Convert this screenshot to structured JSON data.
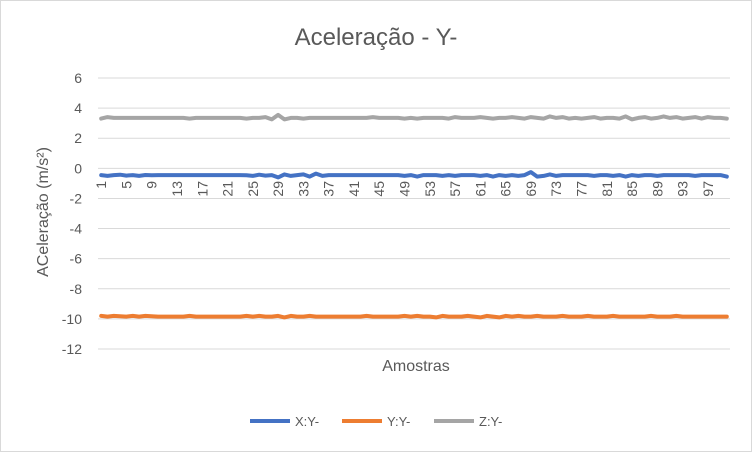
{
  "chart_data": {
    "type": "line",
    "title": "Aceleração - Y-",
    "xlabel": "Amostras",
    "ylabel": "ACeleração (m/s²)",
    "ylim": [
      -12,
      6
    ],
    "yticks": [
      6,
      4,
      2,
      0,
      -2,
      -4,
      -6,
      -8,
      -10,
      -12
    ],
    "x_count": 100,
    "xtick_labels": [
      "1",
      "5",
      "9",
      "13",
      "17",
      "21",
      "25",
      "29",
      "33",
      "37",
      "41",
      "45",
      "49",
      "53",
      "57",
      "61",
      "65",
      "69",
      "73",
      "77",
      "81",
      "85",
      "89",
      "93",
      "97"
    ],
    "grid": true,
    "legend_position": "bottom",
    "series": [
      {
        "name": "X:Y-",
        "color": "#4472c4",
        "values": [
          -0.45,
          -0.5,
          -0.45,
          -0.42,
          -0.48,
          -0.45,
          -0.5,
          -0.44,
          -0.46,
          -0.45,
          -0.45,
          -0.45,
          -0.45,
          -0.45,
          -0.45,
          -0.45,
          -0.45,
          -0.45,
          -0.45,
          -0.45,
          -0.45,
          -0.45,
          -0.45,
          -0.46,
          -0.5,
          -0.42,
          -0.48,
          -0.45,
          -0.6,
          -0.4,
          -0.5,
          -0.45,
          -0.4,
          -0.55,
          -0.35,
          -0.5,
          -0.45,
          -0.45,
          -0.45,
          -0.45,
          -0.45,
          -0.45,
          -0.45,
          -0.45,
          -0.45,
          -0.45,
          -0.45,
          -0.45,
          -0.5,
          -0.45,
          -0.55,
          -0.45,
          -0.45,
          -0.45,
          -0.5,
          -0.45,
          -0.5,
          -0.45,
          -0.45,
          -0.45,
          -0.5,
          -0.45,
          -0.55,
          -0.45,
          -0.5,
          -0.45,
          -0.5,
          -0.45,
          -0.25,
          -0.55,
          -0.5,
          -0.4,
          -0.5,
          -0.45,
          -0.45,
          -0.45,
          -0.45,
          -0.45,
          -0.5,
          -0.45,
          -0.45,
          -0.5,
          -0.45,
          -0.55,
          -0.45,
          -0.5,
          -0.45,
          -0.45,
          -0.5,
          -0.45,
          -0.45,
          -0.45,
          -0.45,
          -0.45,
          -0.5,
          -0.45,
          -0.45,
          -0.45,
          -0.45,
          -0.55
        ]
      },
      {
        "name": "Y:Y-",
        "color": "#ed7d31",
        "values": [
          -9.8,
          -9.85,
          -9.8,
          -9.82,
          -9.85,
          -9.8,
          -9.85,
          -9.8,
          -9.82,
          -9.85,
          -9.85,
          -9.85,
          -9.85,
          -9.85,
          -9.8,
          -9.85,
          -9.85,
          -9.85,
          -9.85,
          -9.85,
          -9.85,
          -9.85,
          -9.85,
          -9.8,
          -9.85,
          -9.8,
          -9.85,
          -9.85,
          -9.8,
          -9.9,
          -9.8,
          -9.85,
          -9.85,
          -9.8,
          -9.85,
          -9.85,
          -9.85,
          -9.85,
          -9.85,
          -9.85,
          -9.85,
          -9.85,
          -9.8,
          -9.85,
          -9.85,
          -9.85,
          -9.85,
          -9.85,
          -9.8,
          -9.85,
          -9.8,
          -9.85,
          -9.85,
          -9.9,
          -9.8,
          -9.85,
          -9.85,
          -9.85,
          -9.8,
          -9.85,
          -9.9,
          -9.8,
          -9.85,
          -9.9,
          -9.8,
          -9.85,
          -9.8,
          -9.85,
          -9.85,
          -9.8,
          -9.85,
          -9.85,
          -9.85,
          -9.8,
          -9.85,
          -9.85,
          -9.85,
          -9.8,
          -9.85,
          -9.85,
          -9.85,
          -9.8,
          -9.85,
          -9.85,
          -9.85,
          -9.85,
          -9.85,
          -9.8,
          -9.85,
          -9.85,
          -9.85,
          -9.8,
          -9.85,
          -9.85,
          -9.85,
          -9.85,
          -9.85,
          -9.85,
          -9.85,
          -9.85
        ]
      },
      {
        "name": "Z:Y-",
        "color": "#a5a5a5",
        "values": [
          3.3,
          3.4,
          3.35,
          3.35,
          3.35,
          3.35,
          3.35,
          3.35,
          3.35,
          3.35,
          3.35,
          3.35,
          3.35,
          3.35,
          3.3,
          3.35,
          3.35,
          3.35,
          3.35,
          3.35,
          3.35,
          3.35,
          3.35,
          3.3,
          3.35,
          3.35,
          3.4,
          3.25,
          3.55,
          3.25,
          3.35,
          3.35,
          3.3,
          3.35,
          3.35,
          3.35,
          3.35,
          3.35,
          3.35,
          3.35,
          3.35,
          3.35,
          3.35,
          3.4,
          3.35,
          3.35,
          3.35,
          3.35,
          3.3,
          3.35,
          3.3,
          3.35,
          3.35,
          3.35,
          3.35,
          3.3,
          3.4,
          3.35,
          3.35,
          3.35,
          3.4,
          3.35,
          3.3,
          3.35,
          3.35,
          3.4,
          3.35,
          3.3,
          3.4,
          3.35,
          3.3,
          3.45,
          3.35,
          3.4,
          3.3,
          3.35,
          3.3,
          3.35,
          3.4,
          3.3,
          3.35,
          3.35,
          3.3,
          3.45,
          3.25,
          3.35,
          3.4,
          3.3,
          3.35,
          3.45,
          3.35,
          3.4,
          3.3,
          3.35,
          3.4,
          3.3,
          3.4,
          3.35,
          3.35,
          3.3
        ]
      }
    ]
  }
}
